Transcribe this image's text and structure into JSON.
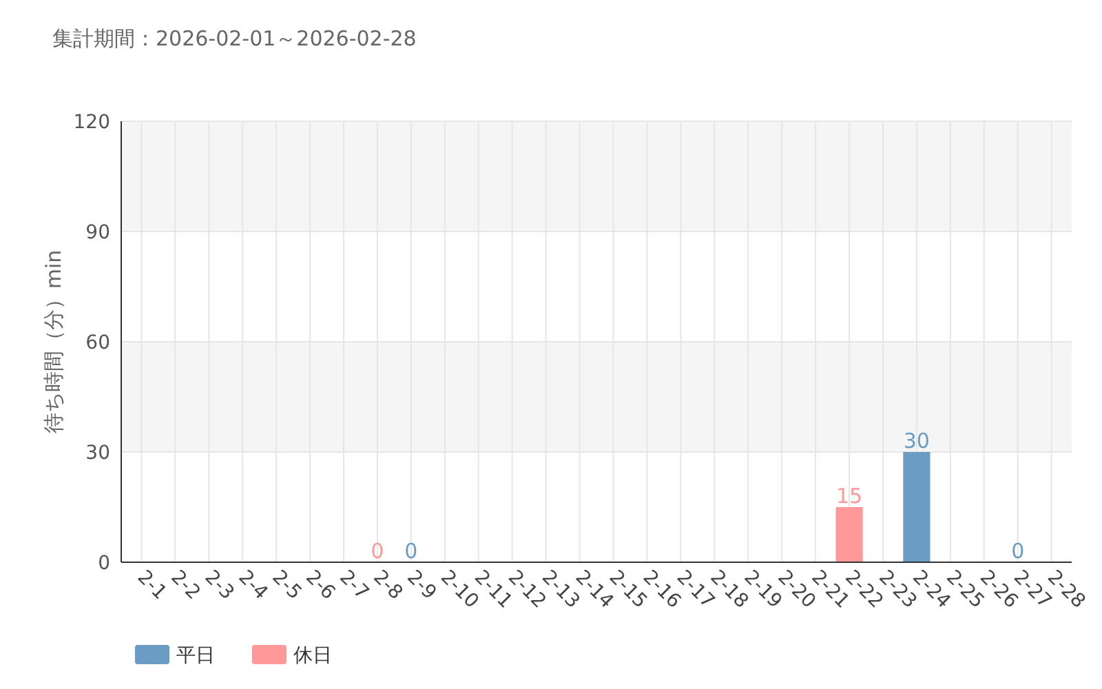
{
  "chart_data": {
    "type": "bar",
    "title": "集計期間：2026-02-01～2026-02-28",
    "ylabel": "待ち時間（分）min",
    "categories": [
      "2-1",
      "2-2",
      "2-3",
      "2-4",
      "2-5",
      "2-6",
      "2-7",
      "2-8",
      "2-9",
      "2-10",
      "2-11",
      "2-12",
      "2-13",
      "2-14",
      "2-15",
      "2-16",
      "2-17",
      "2-18",
      "2-19",
      "2-20",
      "2-21",
      "2-22",
      "2-23",
      "2-24",
      "2-25",
      "2-26",
      "2-27",
      "2-28"
    ],
    "series": [
      {
        "name": "平日",
        "color": "#6a9cc4",
        "values": [
          null,
          null,
          null,
          null,
          null,
          null,
          null,
          null,
          0,
          null,
          null,
          null,
          null,
          null,
          null,
          null,
          null,
          null,
          null,
          null,
          null,
          null,
          null,
          30,
          null,
          null,
          0,
          null
        ]
      },
      {
        "name": "休日",
        "color": "#ff9999",
        "values": [
          null,
          null,
          null,
          null,
          null,
          null,
          null,
          0,
          null,
          null,
          null,
          null,
          null,
          null,
          null,
          null,
          null,
          null,
          null,
          null,
          null,
          15,
          null,
          null,
          null,
          null,
          null,
          null
        ]
      }
    ],
    "stacked": true,
    "ylim": [
      0,
      120
    ],
    "yticks": [
      0,
      30,
      60,
      90,
      120
    ],
    "grid": true,
    "legend": "bottom left",
    "data_labels": true
  }
}
